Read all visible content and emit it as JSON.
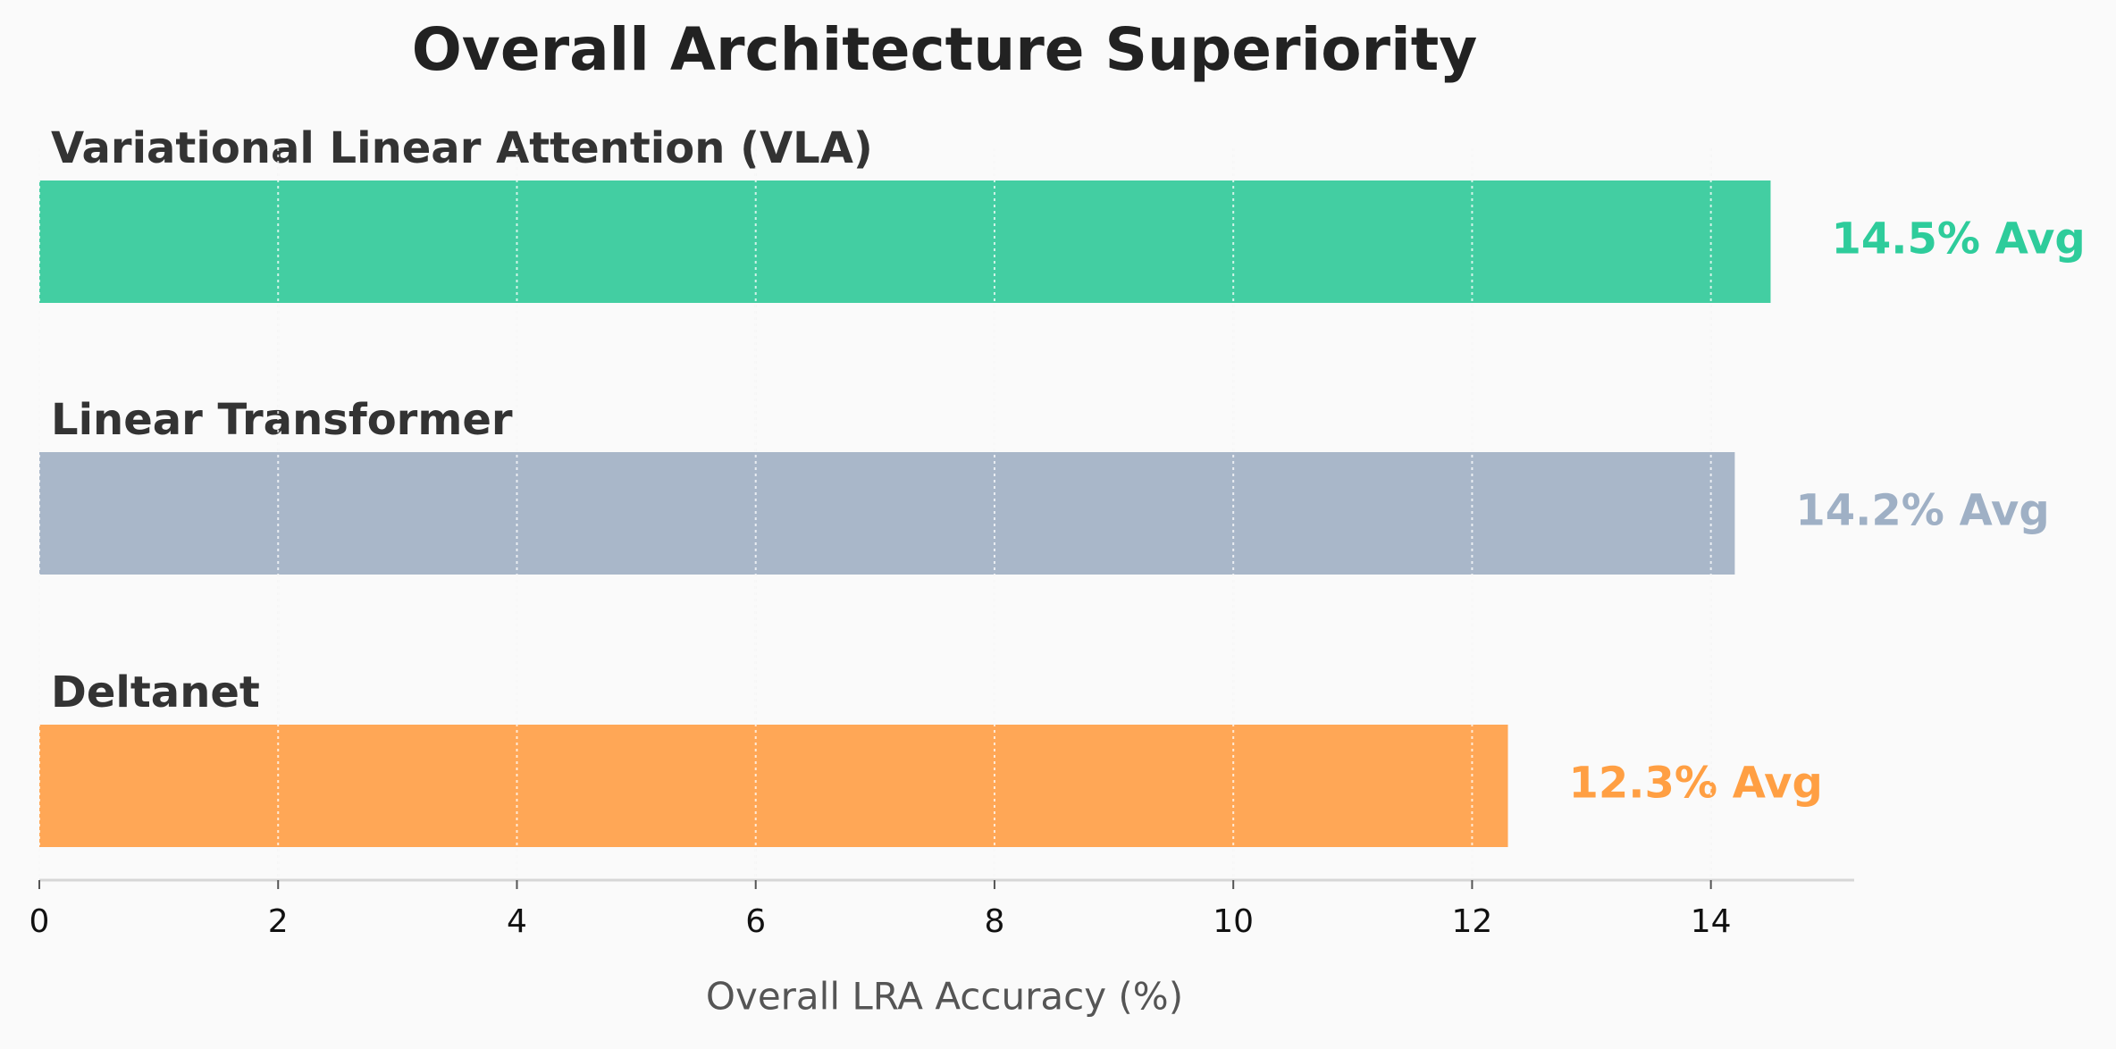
{
  "chart_data": {
    "type": "barh",
    "title": "Overall Architecture Superiority",
    "xlabel": "Overall LRA Accuracy (%)",
    "categories": [
      "Variational Linear Attention (VLA)",
      "Linear Transformer",
      "Deltanet"
    ],
    "values": [
      14.5,
      14.2,
      12.3
    ],
    "value_labels": [
      "14.5% Avg",
      "14.2% Avg",
      "12.3% Avg"
    ],
    "colors": [
      "#43cea2",
      "#a9b7c9",
      "#ffa756"
    ],
    "label_colors": [
      "#2ecc9b",
      "#9fb0c5",
      "#ff9f43"
    ],
    "xlim": [
      0,
      15.2
    ],
    "xticks": [
      0,
      2,
      4,
      6,
      8,
      10,
      12,
      14
    ],
    "grid": true
  }
}
